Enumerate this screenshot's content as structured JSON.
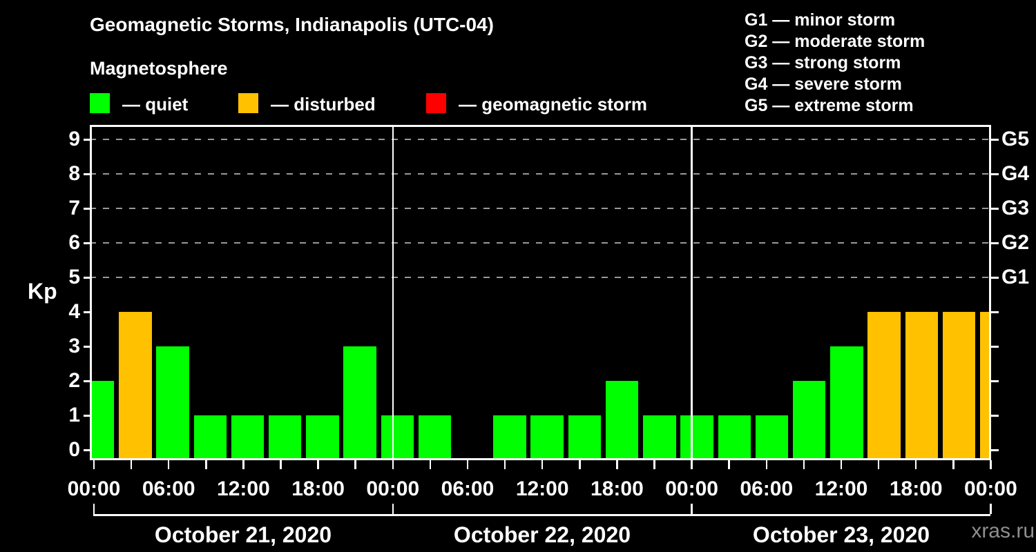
{
  "header": {
    "title": "Geomagnetic Storms, Indianapolis (UTC-04)",
    "subtitle": "Magnetosphere"
  },
  "kp_legend": {
    "items": [
      {
        "label": "— quiet",
        "status": "quiet",
        "color": "#00ff00"
      },
      {
        "label": "— disturbed",
        "status": "disturbed",
        "color": "#ffc100"
      },
      {
        "label": "— geomagnetic storm",
        "status": "storm",
        "color": "#ff0000"
      }
    ]
  },
  "g_scale_legend": {
    "lines": [
      "G1 — minor storm",
      "G2 — moderate storm",
      "G3 — strong storm",
      "G4 — severe storm",
      "G5 — extreme storm"
    ]
  },
  "axes": {
    "y_label": "Kp",
    "y_ticks": [
      0,
      1,
      2,
      3,
      4,
      5,
      6,
      7,
      8,
      9
    ],
    "x_tick_labels": [
      "00:00",
      "06:00",
      "12:00",
      "18:00",
      "00:00",
      "06:00",
      "12:00",
      "18:00",
      "00:00",
      "06:00",
      "12:00",
      "18:00",
      "00:00"
    ],
    "right_axis_labels": [
      {
        "kp": 9,
        "label": "G5"
      },
      {
        "kp": 8,
        "label": "G4"
      },
      {
        "kp": 7,
        "label": "G3"
      },
      {
        "kp": 6,
        "label": "G2"
      },
      {
        "kp": 5,
        "label": "G1"
      }
    ]
  },
  "footer": {
    "watermark": "xras.ru"
  },
  "chart_data": {
    "type": "bar",
    "title": "Geomagnetic Storms, Indianapolis (UTC-04)",
    "subtitle": "Magnetosphere",
    "ylabel": "Kp",
    "ylim": [
      0,
      9
    ],
    "interval_hours": 3,
    "grid": "dashed horizontal lines at Kp 5-9 (G1-G5 storm levels)",
    "legend_position": "top",
    "days": [
      {
        "date": "October 21, 2020",
        "kp": [
          2,
          4,
          3,
          1,
          1,
          1,
          1,
          3
        ]
      },
      {
        "date": "October 22, 2020",
        "kp": [
          1,
          1,
          null,
          1,
          1,
          1,
          2,
          1
        ]
      },
      {
        "date": "October 23, 2020",
        "kp": [
          1,
          1,
          1,
          2,
          3,
          4,
          4,
          4
        ]
      }
    ],
    "next_day_partial_kp": 4,
    "color_rules": [
      {
        "status": "quiet",
        "condition": "Kp <= 3",
        "color": "#00ff00"
      },
      {
        "status": "disturbed",
        "condition": "Kp = 4",
        "color": "#ffc100"
      },
      {
        "status": "storm",
        "condition": "Kp >= 5",
        "color": "#ff0000"
      }
    ],
    "g_levels": [
      {
        "kp": 5,
        "label": "G1"
      },
      {
        "kp": 6,
        "label": "G2"
      },
      {
        "kp": 7,
        "label": "G3"
      },
      {
        "kp": 8,
        "label": "G4"
      },
      {
        "kp": 9,
        "label": "G5"
      }
    ]
  }
}
